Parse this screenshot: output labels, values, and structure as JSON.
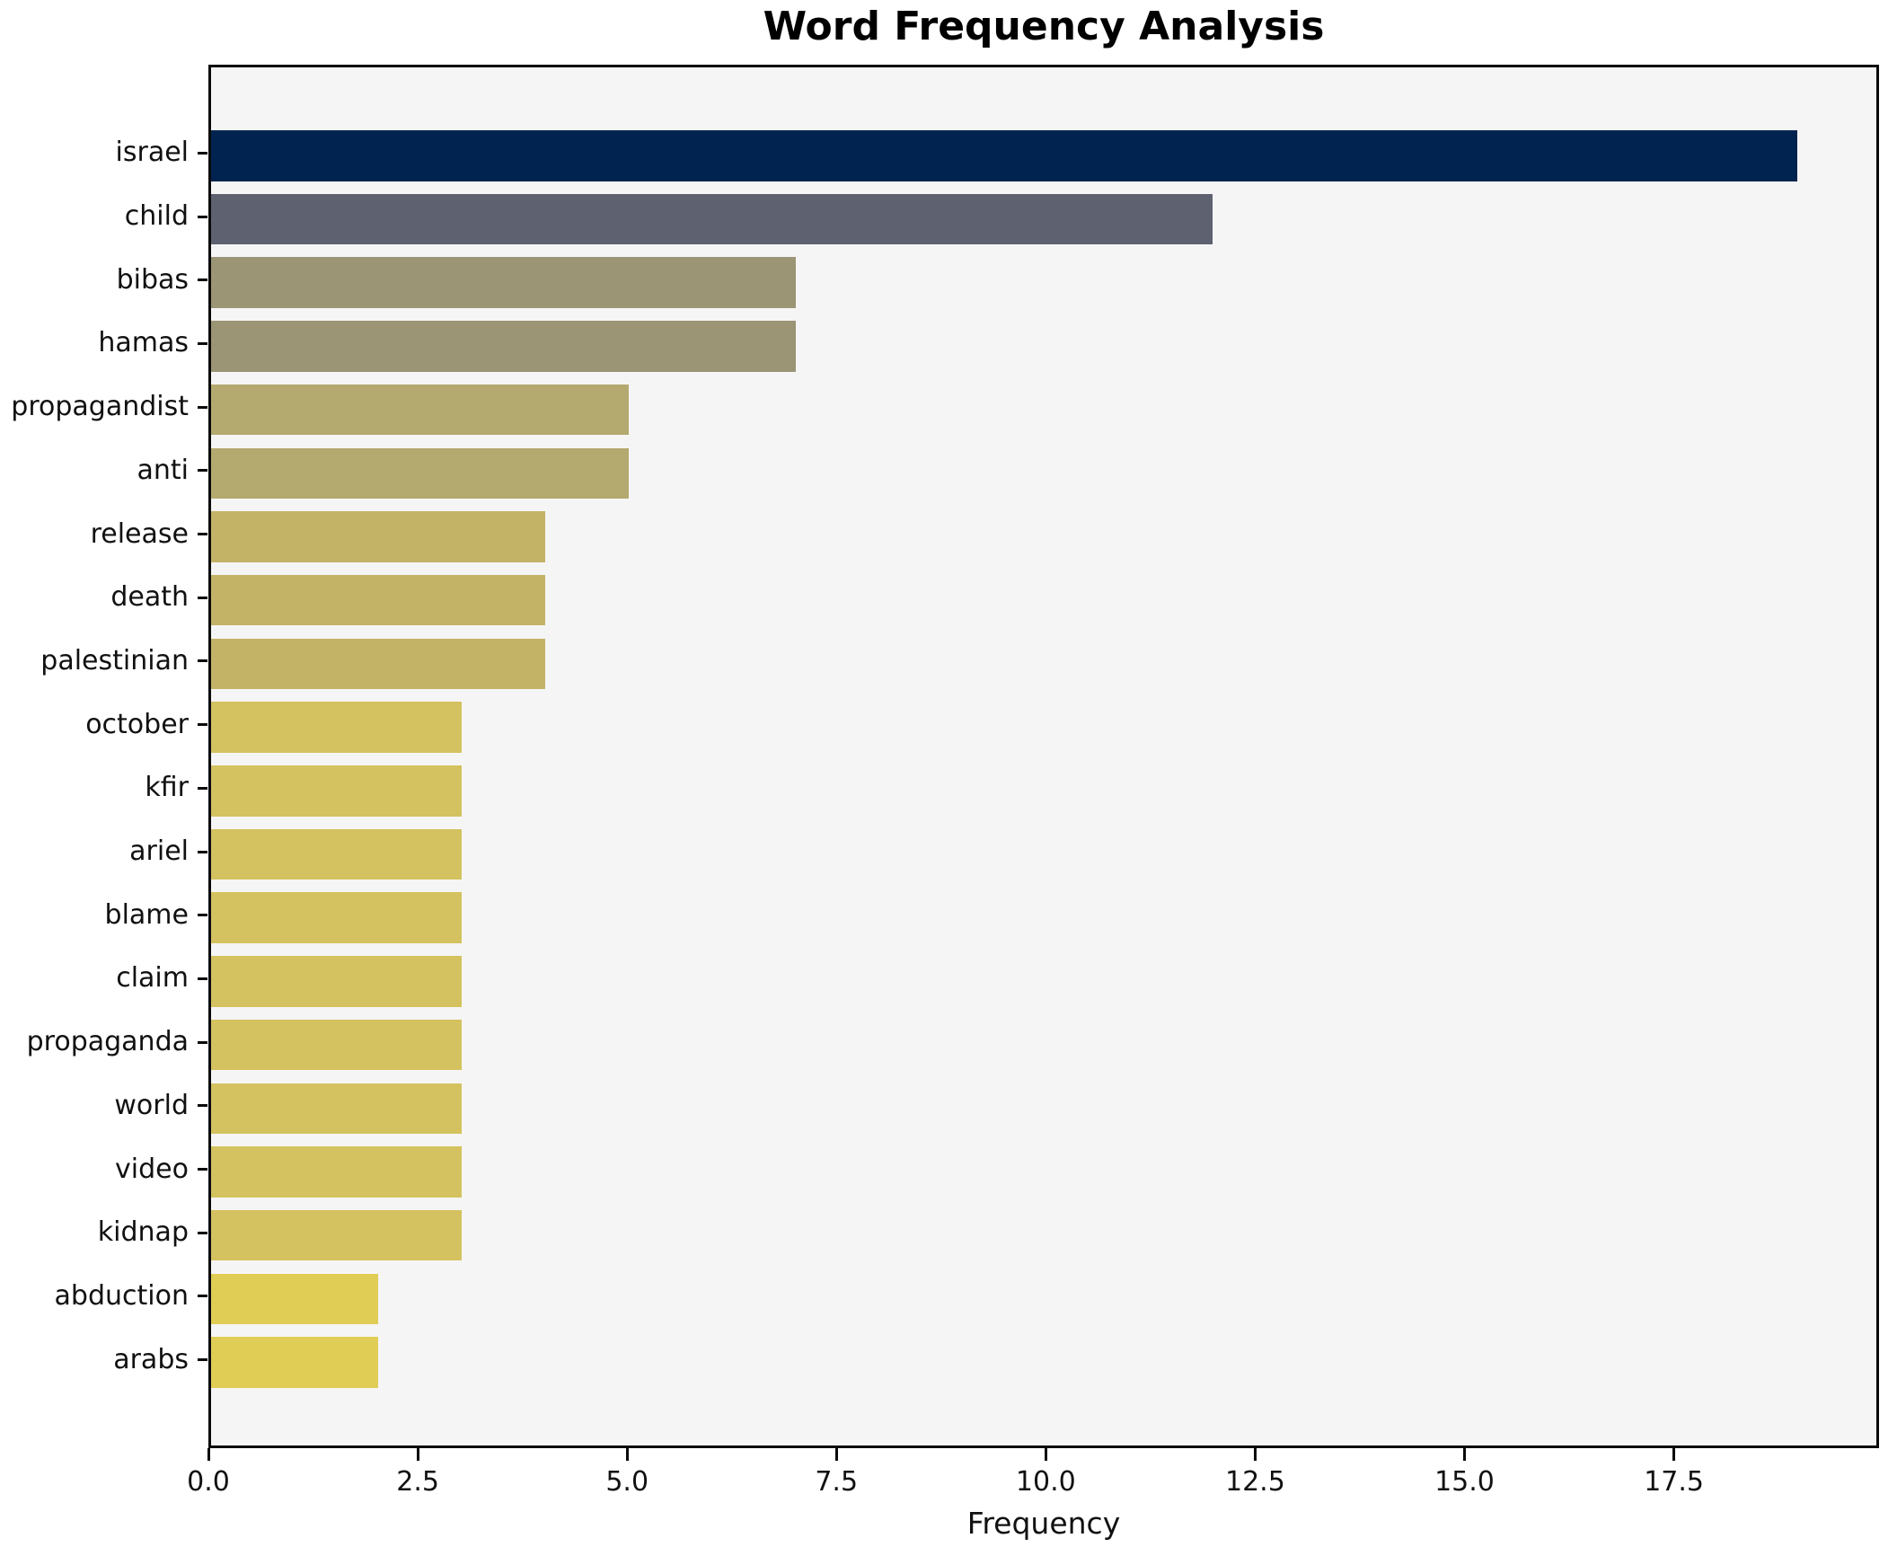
{
  "title": "Word Frequency Analysis",
  "chart_data": {
    "type": "bar",
    "orientation": "horizontal",
    "title": "Word Frequency Analysis",
    "xlabel": "Frequency",
    "ylabel": "",
    "categories": [
      "israel",
      "child",
      "bibas",
      "hamas",
      "propagandist",
      "anti",
      "release",
      "death",
      "palestinian",
      "october",
      "kfir",
      "ariel",
      "blame",
      "claim",
      "propaganda",
      "world",
      "video",
      "kidnap",
      "abduction",
      "arabs"
    ],
    "values": [
      19,
      12,
      7,
      7,
      5,
      5,
      4,
      4,
      4,
      3,
      3,
      3,
      3,
      3,
      3,
      3,
      3,
      3,
      2,
      2
    ],
    "bar_colors": [
      "#00244f",
      "#5d6170",
      "#9b9575",
      "#9b9575",
      "#b4a96e",
      "#b4a96e",
      "#c2b366",
      "#c2b366",
      "#c2b366",
      "#d3c25f",
      "#d3c25f",
      "#d3c25f",
      "#d3c25f",
      "#d3c25f",
      "#d3c25f",
      "#d3c25f",
      "#d3c25f",
      "#d3c25f",
      "#e0cd55",
      "#e0cd55"
    ],
    "xlim": [
      0,
      19.95
    ],
    "xticks": [
      0.0,
      2.5,
      5.0,
      7.5,
      10.0,
      12.5,
      15.0,
      17.5
    ],
    "xtick_labels": [
      "0.0",
      "2.5",
      "5.0",
      "7.5",
      "10.0",
      "12.5",
      "15.0",
      "17.5"
    ],
    "grid": false,
    "legend": null,
    "colors": {
      "axes_background": "#f6f5f6",
      "figure_background": "#ffffff",
      "spine": "#0a0a0a",
      "text": "#111111"
    }
  }
}
